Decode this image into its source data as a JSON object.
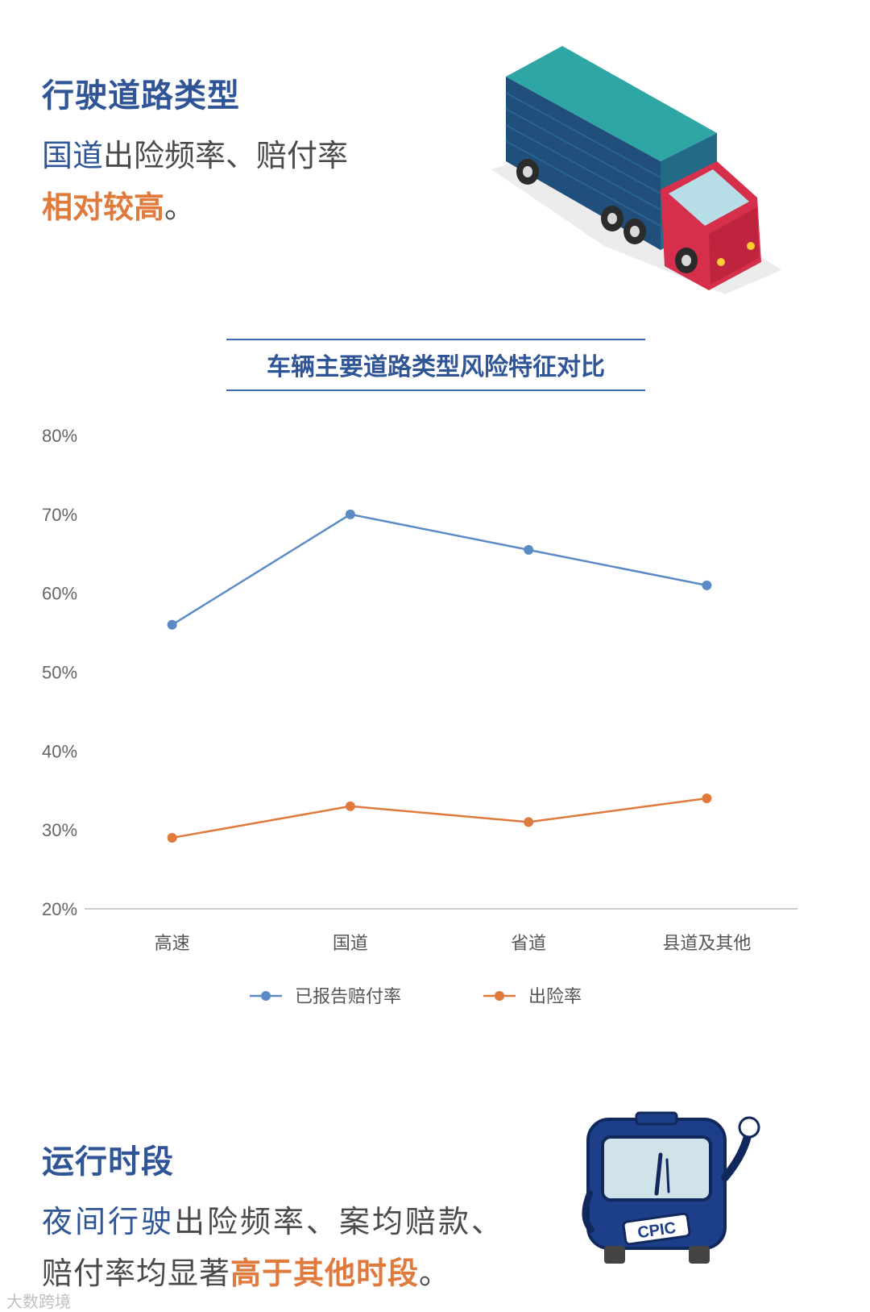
{
  "section1": {
    "heading": "行驶道路类型",
    "line1_highlight": "国道",
    "line1_rest": "出险频率、赔付率",
    "line2_highlight": "相对较高",
    "line2_end": "。"
  },
  "section2": {
    "heading": "运行时段",
    "line1_highlight": "夜间行驶",
    "line1_rest": "出险频率、案均赔款、",
    "line2_start": "赔付率均显著",
    "line2_highlight": "高于其他时段",
    "line2_end": "。",
    "mascot_label": "CPIC"
  },
  "watermark": "大数跨境",
  "colors": {
    "heading_blue": "#2f5597",
    "accent_orange": "#e07a3c",
    "series_blue": "#5b8bc4",
    "series_orange": "#e07a3c"
  },
  "chart_data": {
    "type": "line",
    "title": "车辆主要道路类型风险特征对比",
    "categories": [
      "高速",
      "国道",
      "省道",
      "县道及其他"
    ],
    "series": [
      {
        "name": "已报告赔付率",
        "values": [
          56,
          70,
          65.5,
          61
        ],
        "color": "#5b8bc4"
      },
      {
        "name": "出险率",
        "values": [
          29,
          33,
          31,
          34
        ],
        "color": "#e07a3c"
      }
    ],
    "y_ticks": [
      "80%",
      "70%",
      "60%",
      "50%",
      "40%",
      "30%",
      "20%"
    ],
    "ylim": [
      20,
      80
    ],
    "grid": false,
    "legend": "bottom"
  }
}
